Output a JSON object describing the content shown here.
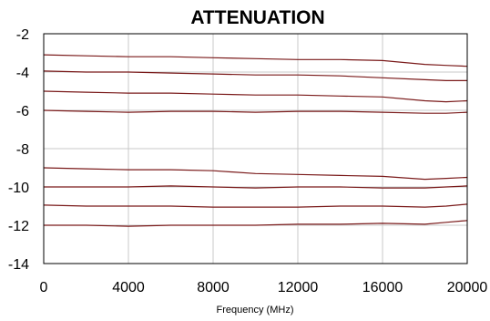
{
  "chart_data": {
    "type": "line",
    "title": "ATTENUATION",
    "xlabel": "Frequency (MHz)",
    "ylabel": "",
    "xlim": [
      0,
      20000
    ],
    "ylim": [
      -14,
      -2
    ],
    "xticks": [
      0,
      4000,
      8000,
      12000,
      16000,
      20000
    ],
    "xtick_labels": [
      "0",
      "4000",
      "8000",
      "12000",
      "16000",
      "20000"
    ],
    "yticks": [
      -2,
      -4,
      -6,
      -8,
      -10,
      -12,
      -14
    ],
    "ytick_labels": [
      "-2",
      "-4",
      "-6",
      "-8",
      "-10",
      "-12",
      "-14"
    ],
    "grid": true,
    "legend": "none",
    "line_color": "#7a1a1a",
    "x": [
      0,
      2000,
      4000,
      6000,
      8000,
      10000,
      12000,
      14000,
      16000,
      18000,
      19000,
      20000
    ],
    "series": [
      {
        "values": [
          -3.1,
          -3.15,
          -3.2,
          -3.2,
          -3.25,
          -3.3,
          -3.35,
          -3.35,
          -3.4,
          -3.6,
          -3.65,
          -3.7
        ]
      },
      {
        "values": [
          -3.95,
          -4.0,
          -4.0,
          -4.05,
          -4.1,
          -4.15,
          -4.15,
          -4.2,
          -4.3,
          -4.4,
          -4.45,
          -4.45
        ]
      },
      {
        "values": [
          -5.0,
          -5.05,
          -5.1,
          -5.1,
          -5.15,
          -5.2,
          -5.2,
          -5.25,
          -5.3,
          -5.5,
          -5.55,
          -5.5
        ]
      },
      {
        "values": [
          -6.0,
          -6.05,
          -6.1,
          -6.05,
          -6.05,
          -6.1,
          -6.05,
          -6.05,
          -6.1,
          -6.15,
          -6.15,
          -6.1
        ]
      },
      {
        "values": [
          -9.0,
          -9.05,
          -9.1,
          -9.1,
          -9.15,
          -9.3,
          -9.35,
          -9.4,
          -9.45,
          -9.6,
          -9.55,
          -9.5
        ]
      },
      {
        "values": [
          -10.0,
          -10.0,
          -10.0,
          -9.95,
          -10.0,
          -10.05,
          -10.0,
          -10.0,
          -10.05,
          -10.05,
          -10.0,
          -9.95
        ]
      },
      {
        "values": [
          -10.95,
          -11.0,
          -11.0,
          -11.0,
          -11.05,
          -11.05,
          -11.05,
          -11.0,
          -11.0,
          -11.05,
          -11.0,
          -10.9
        ]
      },
      {
        "values": [
          -12.0,
          -12.0,
          -12.05,
          -12.0,
          -12.0,
          -12.0,
          -11.95,
          -11.95,
          -11.9,
          -11.95,
          -11.85,
          -11.75
        ]
      }
    ]
  }
}
